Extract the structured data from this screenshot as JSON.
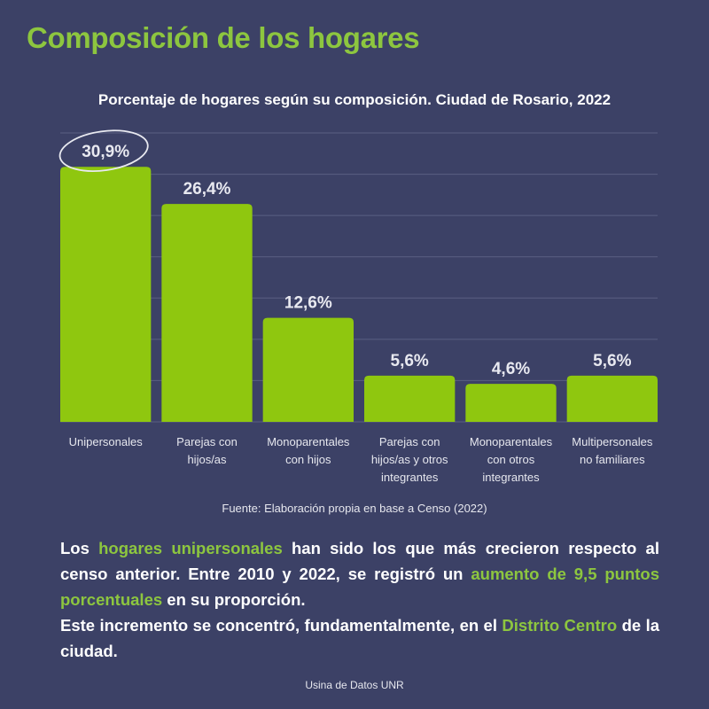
{
  "title": "Composición de los hogares",
  "colors": {
    "background": "#3c4166",
    "bar": "#8fc70f",
    "accent": "#8dc63f",
    "grid": "#5a5f82"
  },
  "chart_data": {
    "type": "bar",
    "title": "Porcentaje de hogares según su composición. Ciudad de Rosario, 2022",
    "categories": [
      [
        "Unipersonales"
      ],
      [
        "Parejas con",
        "hijos/as"
      ],
      [
        "Monoparentales",
        "con hijos"
      ],
      [
        "Parejas con",
        "hijos/as y otros",
        "integrantes"
      ],
      [
        "Monoparentales",
        "con otros",
        "integrantes"
      ],
      [
        "Multipersonales",
        "no familiares"
      ]
    ],
    "values": [
      30.9,
      26.4,
      12.6,
      5.6,
      4.6,
      5.6
    ],
    "labels": [
      "30,9%",
      "26,4%",
      "12,6%",
      "5,6%",
      "4,6%",
      "5,6%"
    ],
    "highlighted": 0,
    "ylim": [
      0,
      35
    ],
    "grid": true,
    "xlabel": "",
    "ylabel": ""
  },
  "source": "Fuente: Elaboración propia en base a Censo (2022)",
  "body": {
    "p1": [
      "Los ",
      "hogares unipersonales",
      " han sido los que más crecieron  respecto al censo anterior. Entre 2010 y 2022, se registró un ",
      "aumento de 9,5 puntos porcentuales",
      " en su proporción."
    ],
    "p2": [
      "Este incremento se concentró, fundamentalmente, en el ",
      "Distrito Centro",
      " de la ciudad."
    ]
  },
  "footer": "Usina de Datos UNR"
}
